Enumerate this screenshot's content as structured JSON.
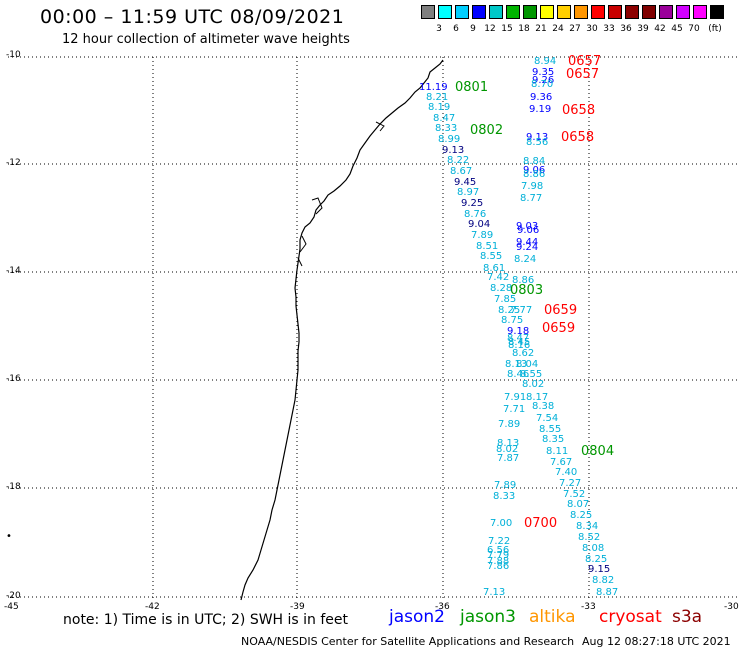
{
  "title": "00:00 – 11:59 UTC 08/09/2021",
  "subtitle": "12 hour collection of altimeter wave heights",
  "legend": {
    "colors": [
      "#7f7f7f",
      "#00ffff",
      "#00cfff",
      "#0000ff",
      "#00c8c8",
      "#00b400",
      "#009600",
      "#ffff00",
      "#ffcf00",
      "#ff9600",
      "#ff0000",
      "#c80000",
      "#8c0000",
      "#800000",
      "#9b009b",
      "#d100ff",
      "#ff00ff",
      "#000000"
    ],
    "ticks": [
      "3",
      "6",
      "9",
      "12",
      "15",
      "18",
      "21",
      "24",
      "27",
      "30",
      "33",
      "36",
      "39",
      "42",
      "45",
      "70"
    ],
    "unit": "(ft)"
  },
  "axes": {
    "y_labels": [
      "-10",
      "-12",
      "-14",
      "-16",
      "-18",
      "-20"
    ],
    "x_labels": [
      "-45",
      "-42",
      "-39",
      "-36",
      "-33",
      "-30"
    ]
  },
  "satellite_colors": {
    "jason2": "#0000ff",
    "jason3": "#009600",
    "altika": "#ff9600",
    "cryosat": "#ff0000",
    "s3a": "#8c0000"
  },
  "wave_labels": [
    {
      "t": "8.94",
      "c": "#00b0d8"
    },
    {
      "t": "9.35",
      "c": "#0000ff"
    },
    {
      "t": "9.26",
      "c": "#0000ff"
    },
    {
      "t": "8.70",
      "c": "#00b0d8"
    },
    {
      "t": "9.36",
      "c": "#0000ff"
    },
    {
      "t": "9.19",
      "c": "#0000ff"
    },
    {
      "t": "9.13",
      "c": "#0000ff"
    },
    {
      "t": "8.56",
      "c": "#00b0d8"
    },
    {
      "t": "8.84",
      "c": "#00b0d8"
    },
    {
      "t": "9.06",
      "c": "#0000ff"
    },
    {
      "t": "8.86",
      "c": "#00b0d8"
    },
    {
      "t": "7.98",
      "c": "#00b0d8"
    },
    {
      "t": "8.77",
      "c": "#00b0d8"
    },
    {
      "t": "9.03",
      "c": "#0000ff"
    },
    {
      "t": "9.06",
      "c": "#0000ff"
    },
    {
      "t": "9.44",
      "c": "#0000ff"
    },
    {
      "t": "9.24",
      "c": "#0000ff"
    },
    {
      "t": "8.24",
      "c": "#00b0d8"
    },
    {
      "t": "8.86",
      "c": "#00b0d8"
    },
    {
      "t": "11.19",
      "c": "#0000ff"
    },
    {
      "t": "8.21",
      "c": "#00b0d8"
    },
    {
      "t": "8.19",
      "c": "#00b0d8"
    },
    {
      "t": "8.47",
      "c": "#00b0d8"
    },
    {
      "t": "8.33",
      "c": "#00b0d8"
    },
    {
      "t": "8.99",
      "c": "#00b0d8"
    },
    {
      "t": "9.13",
      "c": "#000080"
    },
    {
      "t": "8.22",
      "c": "#00b0d8"
    },
    {
      "t": "8.67",
      "c": "#00b0d8"
    },
    {
      "t": "9.45",
      "c": "#000080"
    },
    {
      "t": "8.97",
      "c": "#00b0d8"
    },
    {
      "t": "9.25",
      "c": "#000080"
    },
    {
      "t": "8.76",
      "c": "#00b0d8"
    },
    {
      "t": "9.04",
      "c": "#000080"
    },
    {
      "t": "7.89",
      "c": "#00b0d8"
    },
    {
      "t": "8.51",
      "c": "#00b0d8"
    },
    {
      "t": "8.55",
      "c": "#00b0d8"
    },
    {
      "t": "8.61",
      "c": "#00b0d8"
    },
    {
      "t": "7.42",
      "c": "#00b0d8"
    },
    {
      "t": "8.28",
      "c": "#00b0d8"
    },
    {
      "t": "7.85",
      "c": "#00b0d8"
    },
    {
      "t": "8.25",
      "c": "#00b0d8"
    },
    {
      "t": "7.77",
      "c": "#00b0d8"
    },
    {
      "t": "8.75",
      "c": "#00b0d8"
    },
    {
      "t": "9.18",
      "c": "#0000ff"
    },
    {
      "t": "8.47",
      "c": "#00b0d8"
    },
    {
      "t": "8.45",
      "c": "#00b0d8"
    },
    {
      "t": "8.16",
      "c": "#00b0d8"
    },
    {
      "t": "8.62",
      "c": "#00b0d8"
    },
    {
      "t": "8.13",
      "c": "#00b0d8"
    },
    {
      "t": "8.04",
      "c": "#00b0d8"
    },
    {
      "t": "8.46",
      "c": "#00b0d8"
    },
    {
      "t": "8.55",
      "c": "#00b0d8"
    },
    {
      "t": "8.02",
      "c": "#00b0d8"
    },
    {
      "t": "7.91",
      "c": "#00b0d8"
    },
    {
      "t": "8.17",
      "c": "#00b0d8"
    },
    {
      "t": "7.71",
      "c": "#00b0d8"
    },
    {
      "t": "8.38",
      "c": "#00b0d8"
    },
    {
      "t": "7.54",
      "c": "#00b0d8"
    },
    {
      "t": "7.89",
      "c": "#00b0d8"
    },
    {
      "t": "8.55",
      "c": "#00b0d8"
    },
    {
      "t": "8.35",
      "c": "#00b0d8"
    },
    {
      "t": "8.13",
      "c": "#00b0d8"
    },
    {
      "t": "8.02",
      "c": "#00b0d8"
    },
    {
      "t": "7.87",
      "c": "#00b0d8"
    },
    {
      "t": "8.11",
      "c": "#00b0d8"
    },
    {
      "t": "7.67",
      "c": "#00b0d8"
    },
    {
      "t": "7.40",
      "c": "#00b0d8"
    },
    {
      "t": "7.27",
      "c": "#00b0d8"
    },
    {
      "t": "7.89",
      "c": "#00b0d8"
    },
    {
      "t": "8.33",
      "c": "#00b0d8"
    },
    {
      "t": "7.52",
      "c": "#00b0d8"
    },
    {
      "t": "8.07",
      "c": "#00b0d8"
    },
    {
      "t": "8.25",
      "c": "#00b0d8"
    },
    {
      "t": "7.00",
      "c": "#00b0d8"
    },
    {
      "t": "8.34",
      "c": "#00b0d8"
    },
    {
      "t": "7.22",
      "c": "#00b0d8"
    },
    {
      "t": "8.52",
      "c": "#00b0d8"
    },
    {
      "t": "6.56",
      "c": "#00b0d8"
    },
    {
      "t": "7.79",
      "c": "#00b0d8"
    },
    {
      "t": "7.88",
      "c": "#00b0d8"
    },
    {
      "t": "7.86",
      "c": "#00b0d8"
    },
    {
      "t": "8.08",
      "c": "#00b0d8"
    },
    {
      "t": "8.25",
      "c": "#00b0d8"
    },
    {
      "t": "9.15",
      "c": "#000080"
    },
    {
      "t": "8.82",
      "c": "#00b0d8"
    },
    {
      "t": "8.87",
      "c": "#00b0d8"
    },
    {
      "t": "7.13",
      "c": "#00b0d8"
    }
  ],
  "time_labels": [
    {
      "t": "0657",
      "c": "#ff0000"
    },
    {
      "t": "0657",
      "c": "#ff0000"
    },
    {
      "t": "0801",
      "c": "#009600"
    },
    {
      "t": "0658",
      "c": "#ff0000"
    },
    {
      "t": "0802",
      "c": "#009600"
    },
    {
      "t": "0658",
      "c": "#ff0000"
    },
    {
      "t": "0803",
      "c": "#009600"
    },
    {
      "t": "0659",
      "c": "#ff0000"
    },
    {
      "t": "0659",
      "c": "#ff0000"
    },
    {
      "t": "0804",
      "c": "#009600"
    },
    {
      "t": "0700",
      "c": "#ff0000"
    }
  ],
  "note": "note: 1) Time is in UTC; 2) SWH is in feet",
  "satellites": [
    "jason2",
    "jason3",
    "altika",
    "cryosat",
    "s3a"
  ],
  "footer_left": "NOAA/NESDIS Center for Satellite Applications and Research",
  "footer_right": "Aug 12 08:27:18 UTC 2021"
}
